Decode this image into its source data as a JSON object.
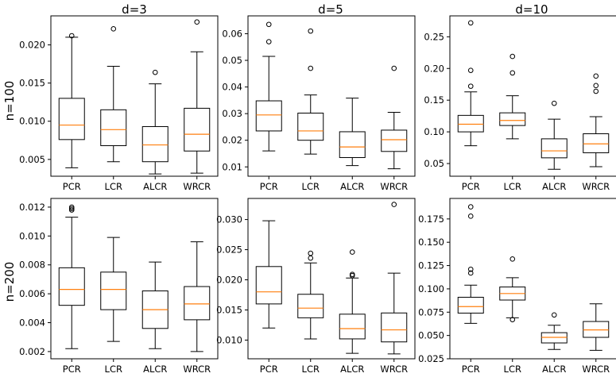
{
  "chart_data": {
    "type": "boxplot",
    "col_titles": [
      "d=3",
      "d=5",
      "d=10"
    ],
    "row_labels": [
      "n=100",
      "n=200"
    ],
    "categories": [
      "PCR",
      "LCR",
      "ALCR",
      "WRCR"
    ],
    "colors": {
      "median": "#ff7f0e",
      "box": "#000000",
      "flier": "#000000"
    },
    "panels": [
      {
        "row": 0,
        "col": 0,
        "ylim": [
          0.0028,
          0.0238
        ],
        "yticks": [
          0.005,
          0.01,
          0.015,
          0.02
        ],
        "ytick_labels": [
          "0.005",
          "0.010",
          "0.015",
          "0.020"
        ],
        "boxes": [
          {
            "whislo": 0.0039,
            "q1": 0.0076,
            "med": 0.0095,
            "q3": 0.013,
            "whishi": 0.021,
            "fliers": [
              0.0212
            ]
          },
          {
            "whislo": 0.0047,
            "q1": 0.0068,
            "med": 0.0089,
            "q3": 0.0115,
            "whishi": 0.0172,
            "fliers": [
              0.0221
            ]
          },
          {
            "whislo": 0.0031,
            "q1": 0.0047,
            "med": 0.0069,
            "q3": 0.0093,
            "whishi": 0.0149,
            "fliers": [
              0.0164
            ]
          },
          {
            "whislo": 0.0032,
            "q1": 0.0061,
            "med": 0.0083,
            "q3": 0.0117,
            "whishi": 0.0191,
            "fliers": [
              0.023
            ]
          }
        ]
      },
      {
        "row": 0,
        "col": 1,
        "ylim": [
          0.0065,
          0.0667
        ],
        "yticks": [
          0.01,
          0.02,
          0.03,
          0.04,
          0.05,
          0.06
        ],
        "ytick_labels": [
          "0.01",
          "0.02",
          "0.03",
          "0.04",
          "0.05",
          "0.06"
        ],
        "boxes": [
          {
            "whislo": 0.016,
            "q1": 0.0235,
            "med": 0.0295,
            "q3": 0.0348,
            "whishi": 0.0515,
            "fliers": [
              0.057,
              0.0635
            ]
          },
          {
            "whislo": 0.0148,
            "q1": 0.02,
            "med": 0.0235,
            "q3": 0.0302,
            "whishi": 0.037,
            "fliers": [
              0.047,
              0.061
            ]
          },
          {
            "whislo": 0.0105,
            "q1": 0.0135,
            "med": 0.0175,
            "q3": 0.0232,
            "whishi": 0.0358,
            "fliers": []
          },
          {
            "whislo": 0.0093,
            "q1": 0.0158,
            "med": 0.0202,
            "q3": 0.0238,
            "whishi": 0.0305,
            "fliers": [
              0.047
            ]
          }
        ]
      },
      {
        "row": 0,
        "col": 2,
        "ylim": [
          0.03,
          0.283
        ],
        "yticks": [
          0.05,
          0.1,
          0.15,
          0.2,
          0.25
        ],
        "ytick_labels": [
          "0.05",
          "0.10",
          "0.15",
          "0.20",
          "0.25"
        ],
        "boxes": [
          {
            "whislo": 0.078,
            "q1": 0.1,
            "med": 0.112,
            "q3": 0.126,
            "whishi": 0.163,
            "fliers": [
              0.172,
              0.197,
              0.272
            ]
          },
          {
            "whislo": 0.089,
            "q1": 0.11,
            "med": 0.118,
            "q3": 0.13,
            "whishi": 0.157,
            "fliers": [
              0.193,
              0.219
            ]
          },
          {
            "whislo": 0.041,
            "q1": 0.059,
            "med": 0.07,
            "q3": 0.089,
            "whishi": 0.12,
            "fliers": [
              0.145
            ]
          },
          {
            "whislo": 0.045,
            "q1": 0.067,
            "med": 0.081,
            "q3": 0.097,
            "whishi": 0.124,
            "fliers": [
              0.164,
              0.173,
              0.188
            ]
          }
        ]
      },
      {
        "row": 1,
        "col": 0,
        "ylim": [
          0.0015,
          0.0126
        ],
        "yticks": [
          0.002,
          0.004,
          0.006,
          0.008,
          0.01,
          0.012
        ],
        "ytick_labels": [
          "0.002",
          "0.004",
          "0.006",
          "0.008",
          "0.010",
          "0.012"
        ],
        "boxes": [
          {
            "whislo": 0.0022,
            "q1": 0.0052,
            "med": 0.0063,
            "q3": 0.0078,
            "whishi": 0.0113,
            "fliers": [
              0.0118,
              0.0119,
              0.012
            ]
          },
          {
            "whislo": 0.0027,
            "q1": 0.0049,
            "med": 0.0063,
            "q3": 0.0075,
            "whishi": 0.0099,
            "fliers": []
          },
          {
            "whislo": 0.0022,
            "q1": 0.0036,
            "med": 0.0049,
            "q3": 0.0062,
            "whishi": 0.0082,
            "fliers": []
          },
          {
            "whislo": 0.002,
            "q1": 0.0042,
            "med": 0.0053,
            "q3": 0.0065,
            "whishi": 0.0096,
            "fliers": []
          }
        ]
      },
      {
        "row": 1,
        "col": 1,
        "ylim": [
          0.0069,
          0.0335
        ],
        "yticks": [
          0.01,
          0.015,
          0.02,
          0.025,
          0.03
        ],
        "ytick_labels": [
          "0.010",
          "0.015",
          "0.020",
          "0.025",
          "0.030"
        ],
        "boxes": [
          {
            "whislo": 0.012,
            "q1": 0.016,
            "med": 0.018,
            "q3": 0.0222,
            "whishi": 0.0298,
            "fliers": []
          },
          {
            "whislo": 0.0102,
            "q1": 0.0137,
            "med": 0.0153,
            "q3": 0.0176,
            "whishi": 0.0228,
            "fliers": [
              0.0236,
              0.0244
            ]
          },
          {
            "whislo": 0.0078,
            "q1": 0.0102,
            "med": 0.0119,
            "q3": 0.0143,
            "whishi": 0.0203,
            "fliers": [
              0.0207,
              0.0209,
              0.0246
            ]
          },
          {
            "whislo": 0.0077,
            "q1": 0.0097,
            "med": 0.0117,
            "q3": 0.0145,
            "whishi": 0.0211,
            "fliers": [
              0.0325
            ]
          }
        ]
      },
      {
        "row": 1,
        "col": 2,
        "ylim": [
          0.025,
          0.197
        ],
        "yticks": [
          0.025,
          0.05,
          0.075,
          0.1,
          0.125,
          0.15,
          0.175
        ],
        "ytick_labels": [
          "0.025",
          "0.050",
          "0.075",
          "0.100",
          "0.125",
          "0.150",
          "0.175"
        ],
        "boxes": [
          {
            "whislo": 0.063,
            "q1": 0.074,
            "med": 0.081,
            "q3": 0.091,
            "whishi": 0.104,
            "fliers": [
              0.117,
              0.121,
              0.178,
              0.188
            ]
          },
          {
            "whislo": 0.069,
            "q1": 0.088,
            "med": 0.095,
            "q3": 0.102,
            "whishi": 0.112,
            "fliers": [
              0.067,
              0.132
            ]
          },
          {
            "whislo": 0.035,
            "q1": 0.042,
            "med": 0.048,
            "q3": 0.053,
            "whishi": 0.061,
            "fliers": [
              0.072
            ]
          },
          {
            "whislo": 0.034,
            "q1": 0.048,
            "med": 0.056,
            "q3": 0.065,
            "whishi": 0.084,
            "fliers": []
          }
        ]
      }
    ]
  }
}
